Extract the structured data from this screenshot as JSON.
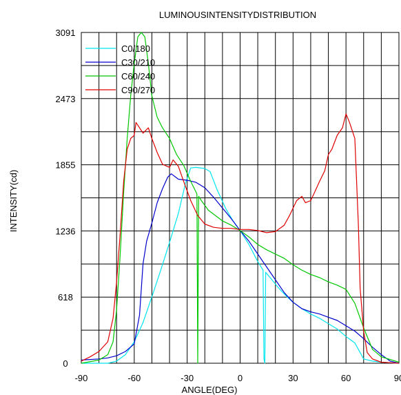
{
  "chart_data": {
    "type": "line",
    "title": "LUMINOUSINTENSITYDISTRIBUTION",
    "xlabel": "ANGLE(DEG)",
    "ylabel": "INTENSITY(cd)",
    "xlim": [
      -90,
      90
    ],
    "ylim": [
      0,
      3091
    ],
    "x_ticks": [
      -90,
      -60,
      -30,
      0,
      30,
      60,
      90
    ],
    "x_tick_labels": [
      "-90",
      "-60",
      "-30",
      "0",
      "30",
      "60",
      "90"
    ],
    "y_ticks": [
      0,
      618,
      1236,
      1855,
      2473,
      3091
    ],
    "y_tick_labels": [
      "0",
      "618",
      "1236",
      "1855",
      "2473",
      "3091"
    ],
    "grid": {
      "vertical_step_deg": 10,
      "horizontal_step_cd": 309.1
    },
    "legend_position": "top-left",
    "series": [
      {
        "name": "C0/180",
        "color": "#00e5ee",
        "points": [
          [
            -90,
            0
          ],
          [
            -75,
            0
          ],
          [
            -70,
            20
          ],
          [
            -65,
            80
          ],
          [
            -60,
            200
          ],
          [
            -55,
            380
          ],
          [
            -50,
            620
          ],
          [
            -45,
            870
          ],
          [
            -40,
            1130
          ],
          [
            -35,
            1400
          ],
          [
            -31,
            1680
          ],
          [
            -28,
            1825
          ],
          [
            -25,
            1830
          ],
          [
            -20,
            1820
          ],
          [
            -17,
            1790
          ],
          [
            -13,
            1620
          ],
          [
            -8,
            1440
          ],
          [
            -4,
            1330
          ],
          [
            0,
            1240
          ],
          [
            5,
            1110
          ],
          [
            10,
            950
          ],
          [
            13,
            870
          ],
          [
            13.5,
            40
          ],
          [
            14,
            0
          ],
          [
            14.5,
            850
          ],
          [
            18,
            780
          ],
          [
            22,
            700
          ],
          [
            26,
            630
          ],
          [
            30,
            570
          ],
          [
            35,
            510
          ],
          [
            40,
            460
          ],
          [
            45,
            420
          ],
          [
            50,
            370
          ],
          [
            55,
            320
          ],
          [
            60,
            250
          ],
          [
            65,
            190
          ],
          [
            70,
            40
          ],
          [
            75,
            20
          ],
          [
            80,
            10
          ],
          [
            90,
            0
          ]
        ]
      },
      {
        "name": "C30/210",
        "color": "#0000cd",
        "points": [
          [
            -90,
            30
          ],
          [
            -80,
            40
          ],
          [
            -75,
            50
          ],
          [
            -70,
            70
          ],
          [
            -65,
            110
          ],
          [
            -60,
            180
          ],
          [
            -57,
            450
          ],
          [
            -55,
            930
          ],
          [
            -53,
            1140
          ],
          [
            -50,
            1310
          ],
          [
            -47,
            1500
          ],
          [
            -44,
            1630
          ],
          [
            -41,
            1740
          ],
          [
            -39,
            1770
          ],
          [
            -35,
            1720
          ],
          [
            -30,
            1710
          ],
          [
            -25,
            1690
          ],
          [
            -20,
            1640
          ],
          [
            -15,
            1550
          ],
          [
            -10,
            1450
          ],
          [
            -5,
            1350
          ],
          [
            0,
            1240
          ],
          [
            5,
            1140
          ],
          [
            10,
            1020
          ],
          [
            15,
            900
          ],
          [
            20,
            780
          ],
          [
            25,
            660
          ],
          [
            30,
            570
          ],
          [
            35,
            510
          ],
          [
            40,
            480
          ],
          [
            45,
            460
          ],
          [
            50,
            430
          ],
          [
            55,
            400
          ],
          [
            60,
            350
          ],
          [
            65,
            300
          ],
          [
            70,
            230
          ],
          [
            75,
            150
          ],
          [
            80,
            80
          ],
          [
            85,
            20
          ],
          [
            90,
            0
          ]
        ]
      },
      {
        "name": "C60/240",
        "color": "#00c800",
        "points": [
          [
            -90,
            0
          ],
          [
            -80,
            30
          ],
          [
            -75,
            80
          ],
          [
            -72,
            200
          ],
          [
            -70,
            500
          ],
          [
            -68,
            1000
          ],
          [
            -66,
            1600
          ],
          [
            -64,
            2100
          ],
          [
            -62,
            2500
          ],
          [
            -60,
            2800
          ],
          [
            -58,
            3050
          ],
          [
            -56,
            3091
          ],
          [
            -54,
            3050
          ],
          [
            -52,
            2800
          ],
          [
            -50,
            2500
          ],
          [
            -47,
            2300
          ],
          [
            -44,
            2200
          ],
          [
            -40,
            2100
          ],
          [
            -36,
            1950
          ],
          [
            -32,
            1850
          ],
          [
            -28,
            1700
          ],
          [
            -25,
            1600
          ],
          [
            -24.5,
            1580
          ],
          [
            -24,
            0
          ],
          [
            -23.5,
            1560
          ],
          [
            -22,
            1520
          ],
          [
            -18,
            1430
          ],
          [
            -14,
            1380
          ],
          [
            -10,
            1330
          ],
          [
            -5,
            1290
          ],
          [
            0,
            1240
          ],
          [
            5,
            1180
          ],
          [
            10,
            1110
          ],
          [
            15,
            1060
          ],
          [
            20,
            1020
          ],
          [
            25,
            980
          ],
          [
            30,
            920
          ],
          [
            35,
            870
          ],
          [
            40,
            830
          ],
          [
            45,
            800
          ],
          [
            50,
            760
          ],
          [
            55,
            730
          ],
          [
            60,
            690
          ],
          [
            65,
            560
          ],
          [
            70,
            330
          ],
          [
            75,
            130
          ],
          [
            80,
            60
          ],
          [
            90,
            10
          ]
        ]
      },
      {
        "name": "C90/270",
        "color": "#e00000",
        "points": [
          [
            -90,
            20
          ],
          [
            -85,
            60
          ],
          [
            -80,
            110
          ],
          [
            -75,
            200
          ],
          [
            -72,
            420
          ],
          [
            -70,
            760
          ],
          [
            -68,
            1200
          ],
          [
            -66,
            1700
          ],
          [
            -64,
            2000
          ],
          [
            -62,
            2100
          ],
          [
            -60,
            2130
          ],
          [
            -59,
            2250
          ],
          [
            -57,
            2200
          ],
          [
            -55,
            2150
          ],
          [
            -52,
            2200
          ],
          [
            -50,
            2100
          ],
          [
            -47,
            1970
          ],
          [
            -44,
            1860
          ],
          [
            -40,
            1830
          ],
          [
            -38,
            1900
          ],
          [
            -35,
            1840
          ],
          [
            -32,
            1700
          ],
          [
            -28,
            1520
          ],
          [
            -24,
            1380
          ],
          [
            -20,
            1300
          ],
          [
            -15,
            1270
          ],
          [
            -10,
            1260
          ],
          [
            -5,
            1260
          ],
          [
            0,
            1250
          ],
          [
            5,
            1250
          ],
          [
            10,
            1240
          ],
          [
            15,
            1220
          ],
          [
            20,
            1230
          ],
          [
            25,
            1290
          ],
          [
            28,
            1380
          ],
          [
            32,
            1520
          ],
          [
            35,
            1560
          ],
          [
            37,
            1500
          ],
          [
            40,
            1520
          ],
          [
            42,
            1590
          ],
          [
            45,
            1700
          ],
          [
            48,
            1800
          ],
          [
            50,
            1950
          ],
          [
            52,
            2000
          ],
          [
            55,
            2130
          ],
          [
            58,
            2200
          ],
          [
            60,
            2330
          ],
          [
            62,
            2250
          ],
          [
            65,
            2100
          ],
          [
            67,
            1300
          ],
          [
            68,
            700
          ],
          [
            70,
            300
          ],
          [
            72,
            100
          ],
          [
            75,
            40
          ],
          [
            80,
            10
          ],
          [
            90,
            0
          ]
        ]
      }
    ]
  }
}
